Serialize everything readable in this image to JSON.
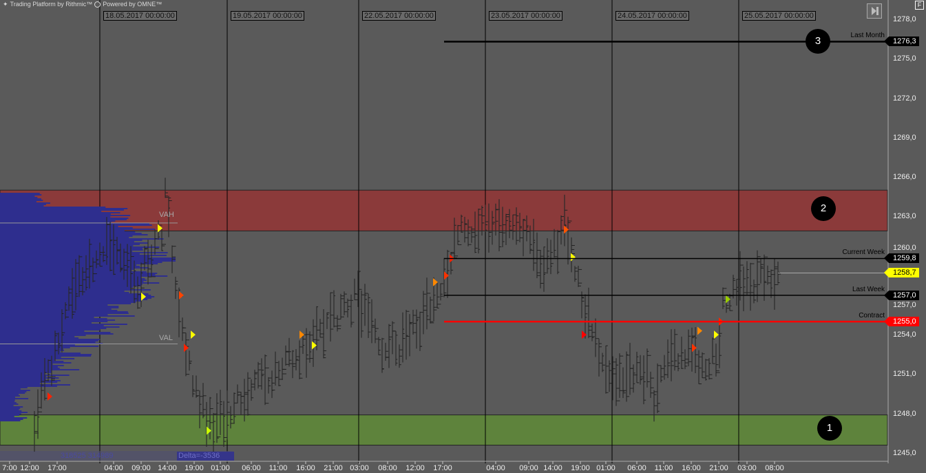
{
  "header": {
    "platform": "Trading Platform by Rithmic™",
    "powered": "Powered by OMNE™"
  },
  "toolbar": {
    "f_button": "F",
    "skip_icon": "skip-to-end-icon"
  },
  "price_axis": {
    "labels": [
      "1278,0",
      "1275,0",
      "1272,0",
      "1269,0",
      "1266,0",
      "1263,0",
      "1260,0",
      "1257,0",
      "1254,0",
      "1251,0",
      "1248,0",
      "1245,0"
    ]
  },
  "levels": [
    {
      "name": "Last Month",
      "price": 1276.3,
      "label": "1276,3",
      "color": "#000000"
    },
    {
      "name": "Current Week",
      "price": 1259.8,
      "label": "1259,8",
      "color": "#000000"
    },
    {
      "name": "Last Week",
      "price": 1257.0,
      "label": "1257,0",
      "color": "#000000"
    },
    {
      "name": "Contract",
      "price": 1255.0,
      "label": "1255,0",
      "color": "#ff0000"
    }
  ],
  "current_price": {
    "price": 1258.7,
    "label": "1258,7",
    "color": "#ffff00"
  },
  "zones": [
    {
      "label": "2",
      "from": 1261.9,
      "to": 1265.0,
      "color": "#8b3a3a"
    },
    {
      "label": "1",
      "from": 1245.6,
      "to": 1247.9,
      "color": "#5e833c"
    }
  ],
  "marker_3": "3",
  "profile": {
    "vah": "VAH",
    "val": "VAL",
    "vah_price": 1262.5,
    "val_price": 1253.3,
    "volumes": "318525 314989",
    "delta": "Delta=-3536"
  },
  "time_axis": {
    "ticks": [
      "7:00",
      "12:00",
      "17:00",
      "04:00",
      "09:00",
      "14:00",
      "19:00",
      "01:00",
      "06:00",
      "11:00",
      "16:00",
      "21:00",
      "03:00",
      "08:00",
      "12:00",
      "17:00",
      "04:00",
      "09:00",
      "14:00",
      "19:00",
      "01:00",
      "06:00",
      "11:00",
      "16:00",
      "21:00",
      "03:00",
      "08:00"
    ],
    "dates": [
      "18.05.2017 00:00:00",
      "19.05.2017 00:00:00",
      "22.05.2017 00:00:00",
      "23.05.2017 00:00:00",
      "24.05.2017 00:00:00",
      "25.05.2017 00:00:00"
    ]
  }
}
